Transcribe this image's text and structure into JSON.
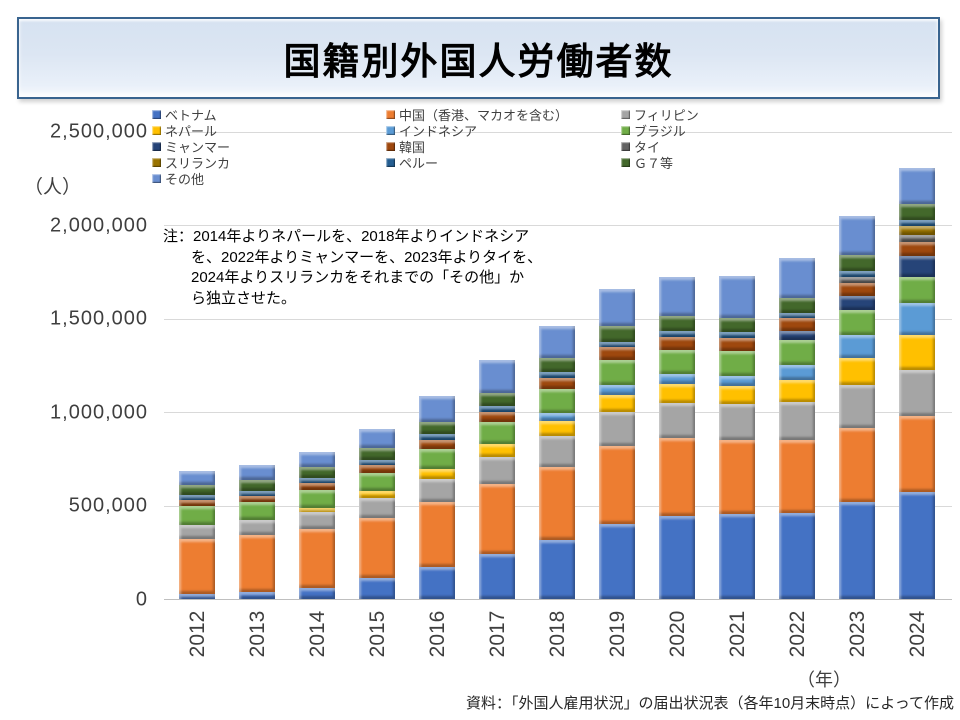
{
  "title": "国籍別外国人労働者数",
  "y_unit": "（人）",
  "x_unit": "（年）",
  "note": {
    "lines": [
      "注：2014年よりネパールを、2018年よりインドネシア",
      "を、2022年よりミャンマーを、2023年よりタイを、",
      "2024年よりスリランカをそれまでの「その他」か",
      "ら独立させた。"
    ]
  },
  "source": "資料：「外国人雇用状況」の届出状況表（各年10月末時点）によって作成",
  "chart_data": {
    "type": "bar",
    "stacked": true,
    "title": "国籍別外国人労働者数",
    "xlabel": "（年）",
    "ylabel": "（人）",
    "grid": true,
    "legend_position": "top-left",
    "ylim": [
      0,
      2500000
    ],
    "ytick_interval": 500000,
    "ytick_labels": [
      "0",
      "500,000",
      "1,000,000",
      "1,500,000",
      "2,000,000",
      "2,500,000"
    ],
    "categories": [
      "2012",
      "2013",
      "2014",
      "2015",
      "2016",
      "2017",
      "2018",
      "2019",
      "2020",
      "2021",
      "2022",
      "2023",
      "2024"
    ],
    "totals": [
      682450,
      717504,
      787627,
      907896,
      1083769,
      1278670,
      1460463,
      1658804,
      1724328,
      1727221,
      1822725,
      2048675,
      2302587
    ],
    "series": [
      {
        "name": "ベトナム",
        "color": "#4472C4",
        "values": [
          26828,
          37537,
          61168,
          110013,
          172018,
          240259,
          316840,
          401326,
          443998,
          453344,
          462384,
          518364,
          570708
        ]
      },
      {
        "name": "中国（香港、マカオを含む）",
        "color": "#ED7D31",
        "values": [
          296388,
          303886,
          311831,
          322545,
          344658,
          372263,
          389117,
          418327,
          419431,
          397084,
          385848,
          397918,
          408805
        ]
      },
      {
        "name": "フィリピン",
        "color": "#A5A5A5",
        "values": [
          72867,
          80170,
          91519,
          106533,
          127518,
          146798,
          164006,
          179685,
          184750,
          191083,
          206050,
          226846,
          245565
        ]
      },
      {
        "name": "ネパール",
        "color": "#FFC000",
        "values": [
          0,
          0,
          24282,
          39056,
          52770,
          69111,
          81562,
          91770,
          99628,
          98260,
          118196,
          145587,
          187657
        ]
      },
      {
        "name": "インドネシア",
        "color": "#5B9BD5",
        "values": [
          0,
          0,
          0,
          0,
          0,
          0,
          41586,
          51337,
          53395,
          52810,
          77889,
          121507,
          169539
        ]
      },
      {
        "name": "ブラジル",
        "color": "#70AD47",
        "values": [
          101891,
          95505,
          94171,
          96672,
          106597,
          117299,
          127392,
          135455,
          131112,
          134977,
          135167,
          137132,
          139160
        ]
      },
      {
        "name": "ミャンマー",
        "color": "#264478",
        "values": [
          0,
          0,
          0,
          0,
          0,
          0,
          0,
          0,
          0,
          0,
          47498,
          71188,
          113637
        ]
      },
      {
        "name": "韓国",
        "color": "#9E480E",
        "values": [
          31780,
          33846,
          37262,
          41461,
          48121,
          55926,
          62516,
          69191,
          68897,
          67638,
          67929,
          71454,
          75108
        ]
      },
      {
        "name": "タイ",
        "color": "#636363",
        "values": [
          0,
          0,
          0,
          0,
          0,
          0,
          0,
          0,
          0,
          0,
          0,
          34000,
          37000
        ]
      },
      {
        "name": "スリランカ",
        "color": "#997300",
        "values": [
          0,
          0,
          0,
          0,
          0,
          0,
          0,
          0,
          0,
          0,
          0,
          0,
          46000
        ]
      },
      {
        "name": "ペルー",
        "color": "#255E91",
        "values": [
          27000,
          27000,
          27000,
          28000,
          28000,
          28000,
          29000,
          29554,
          30000,
          30000,
          31000,
          32000,
          34000
        ]
      },
      {
        "name": "Ｇ７等",
        "color": "#43682B",
        "values": [
          55000,
          58000,
          61000,
          65000,
          69000,
          74000,
          77000,
          81003,
          80414,
          78621,
          78000,
          81000,
          84000
        ]
      },
      {
        "name": "その他",
        "color": "#698ED0",
        "values": [
          70696,
          81560,
          79394,
          98616,
          135087,
          175014,
          171444,
          201156,
          212703,
          223404,
          212764,
          211679,
          191408
        ]
      }
    ]
  }
}
